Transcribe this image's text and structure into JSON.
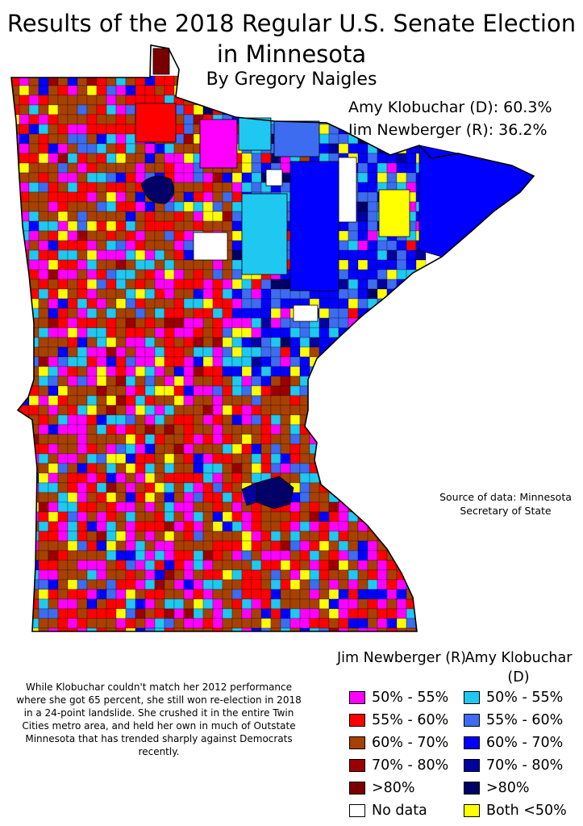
{
  "title": "Results of the 2018 Regular U.S. Senate Election in Minnesota",
  "subtitle": "By Gregory Naigles",
  "results": {
    "klobuchar": "Amy Klobuchar (D): 60.3%",
    "newberger": "Jim Newberger (R): 36.2%"
  },
  "source": "Source of data: Minnesota Secretary of State",
  "commentary": "While Klobuchar couldn't match her 2012 performance where she got 65 percent, she still won re-election in 2018 in a 24-point landslide. She crushed it in the entire Twin Cities metro area, and held her own in much of Outstate Minnesota that has trended sharply against Democrats recently.",
  "legend": {
    "newberger_heading": "Jim Newberger (R)",
    "klobuchar_heading": "Amy Klobuchar (D)",
    "r_items": [
      {
        "label": "50% - 55%",
        "color": "#ff00ff"
      },
      {
        "label": "55% - 60%",
        "color": "#ff0000"
      },
      {
        "label": "60% - 70%",
        "color": "#a84100"
      },
      {
        "label": "70% - 80%",
        "color": "#9b0000"
      },
      {
        "label": ">80%",
        "color": "#7a0000"
      },
      {
        "label": "No data",
        "color": "#ffffff"
      }
    ],
    "d_items": [
      {
        "label": "50% - 55%",
        "color": "#1fc8f0"
      },
      {
        "label": "55% - 60%",
        "color": "#3d6cf0"
      },
      {
        "label": "60% - 70%",
        "color": "#0000ff"
      },
      {
        "label": "70% - 80%",
        "color": "#00009e"
      },
      {
        "label": ">80%",
        "color": "#000066"
      },
      {
        "label": "Both <50%",
        "color": "#ffff00"
      }
    ]
  }
}
